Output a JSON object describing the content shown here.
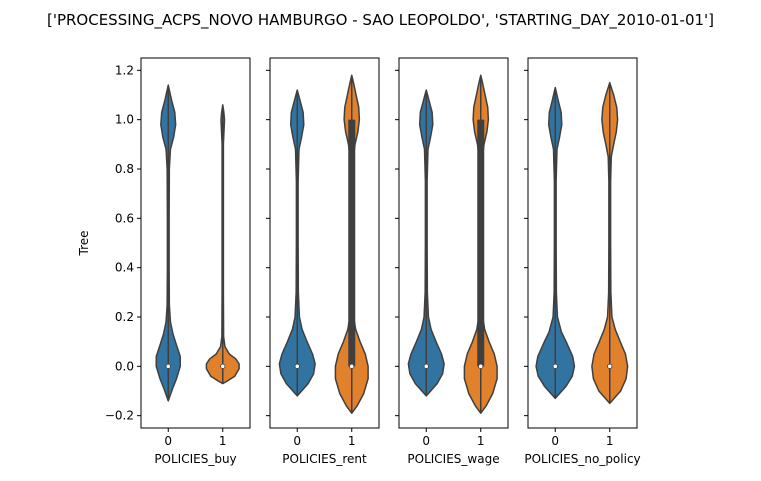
{
  "title": "['PROCESSING_ACPS_NOVO HAMBURGO - SAO LEOPOLDO', 'STARTING_DAY_2010-01-01']",
  "colors": {
    "hue0": "#3274a1",
    "hue1": "#e1812c",
    "edge": "#3f3f3f"
  },
  "chart_data": [
    {
      "type": "violin",
      "xlabel": "POLICIES_buy",
      "ylabel": "Tree",
      "ylim": [
        -0.25,
        1.25
      ],
      "yticks": [
        -0.2,
        0.0,
        0.2,
        0.4,
        0.6,
        0.8,
        1.0,
        1.2
      ],
      "ytick_labels": [
        "−0.2",
        "0.0",
        "0.2",
        "0.4",
        "0.6",
        "0.8",
        "1.0",
        "1.2"
      ],
      "categories": [
        "0",
        "1"
      ],
      "violins": [
        {
          "category": "0",
          "min": -0.14,
          "max": 1.14,
          "median": 0.0,
          "q1": 0.0,
          "q3": 0.0,
          "profile": [
            [
              -0.14,
              0.0
            ],
            [
              -0.12,
              0.08
            ],
            [
              -0.09,
              0.2
            ],
            [
              -0.05,
              0.38
            ],
            [
              0.0,
              0.55
            ],
            [
              0.04,
              0.55
            ],
            [
              0.08,
              0.4
            ],
            [
              0.13,
              0.22
            ],
            [
              0.18,
              0.1
            ],
            [
              0.25,
              0.05
            ],
            [
              0.4,
              0.04
            ],
            [
              0.6,
              0.04
            ],
            [
              0.8,
              0.05
            ],
            [
              0.88,
              0.1
            ],
            [
              0.93,
              0.25
            ],
            [
              0.98,
              0.34
            ],
            [
              1.03,
              0.3
            ],
            [
              1.08,
              0.15
            ],
            [
              1.14,
              0.0
            ]
          ]
        },
        {
          "category": "1",
          "min": -0.07,
          "max": 1.06,
          "median": 0.0,
          "q1": 0.0,
          "q3": 0.0,
          "profile": [
            [
              -0.07,
              0.0
            ],
            [
              -0.06,
              0.2
            ],
            [
              -0.04,
              0.55
            ],
            [
              -0.01,
              0.75
            ],
            [
              0.01,
              0.75
            ],
            [
              0.03,
              0.6
            ],
            [
              0.05,
              0.3
            ],
            [
              0.08,
              0.1
            ],
            [
              0.12,
              0.04
            ],
            [
              0.3,
              0.03
            ],
            [
              0.6,
              0.03
            ],
            [
              0.9,
              0.03
            ],
            [
              0.96,
              0.06
            ],
            [
              1.0,
              0.08
            ],
            [
              1.03,
              0.05
            ],
            [
              1.06,
              0.0
            ]
          ]
        }
      ]
    },
    {
      "type": "violin",
      "xlabel": "POLICIES_rent",
      "ylabel": "",
      "ylim": [
        -0.25,
        1.25
      ],
      "categories": [
        "0",
        "1"
      ],
      "violins": [
        {
          "category": "0",
          "min": -0.12,
          "max": 1.12,
          "median": 0.0,
          "q1": 0.0,
          "q3": 0.0,
          "profile": [
            [
              -0.12,
              0.0
            ],
            [
              -0.1,
              0.2
            ],
            [
              -0.07,
              0.5
            ],
            [
              -0.03,
              0.75
            ],
            [
              0.01,
              0.82
            ],
            [
              0.05,
              0.7
            ],
            [
              0.1,
              0.45
            ],
            [
              0.15,
              0.22
            ],
            [
              0.2,
              0.1
            ],
            [
              0.3,
              0.05
            ],
            [
              0.5,
              0.04
            ],
            [
              0.75,
              0.04
            ],
            [
              0.88,
              0.08
            ],
            [
              0.93,
              0.2
            ],
            [
              0.98,
              0.3
            ],
            [
              1.03,
              0.27
            ],
            [
              1.08,
              0.12
            ],
            [
              1.12,
              0.0
            ]
          ]
        },
        {
          "category": "1",
          "min": -0.19,
          "max": 1.18,
          "median": 0.0,
          "q1": 0.0,
          "q3": 1.0,
          "profile": [
            [
              -0.19,
              0.0
            ],
            [
              -0.16,
              0.25
            ],
            [
              -0.11,
              0.55
            ],
            [
              -0.05,
              0.75
            ],
            [
              0.0,
              0.75
            ],
            [
              0.05,
              0.62
            ],
            [
              0.1,
              0.38
            ],
            [
              0.15,
              0.18
            ],
            [
              0.2,
              0.09
            ],
            [
              0.3,
              0.08
            ],
            [
              0.6,
              0.07
            ],
            [
              0.85,
              0.08
            ],
            [
              0.9,
              0.15
            ],
            [
              0.95,
              0.28
            ],
            [
              1.0,
              0.35
            ],
            [
              1.05,
              0.32
            ],
            [
              1.1,
              0.2
            ],
            [
              1.15,
              0.08
            ],
            [
              1.18,
              0.0
            ]
          ]
        }
      ]
    },
    {
      "type": "violin",
      "xlabel": "POLICIES_wage",
      "ylabel": "",
      "ylim": [
        -0.25,
        1.25
      ],
      "categories": [
        "0",
        "1"
      ],
      "violins": [
        {
          "category": "0",
          "min": -0.12,
          "max": 1.12,
          "median": 0.0,
          "q1": 0.0,
          "q3": 0.0,
          "profile": [
            [
              -0.12,
              0.0
            ],
            [
              -0.1,
              0.2
            ],
            [
              -0.07,
              0.5
            ],
            [
              -0.03,
              0.75
            ],
            [
              0.01,
              0.82
            ],
            [
              0.05,
              0.7
            ],
            [
              0.1,
              0.45
            ],
            [
              0.15,
              0.22
            ],
            [
              0.2,
              0.1
            ],
            [
              0.3,
              0.05
            ],
            [
              0.5,
              0.04
            ],
            [
              0.75,
              0.04
            ],
            [
              0.88,
              0.08
            ],
            [
              0.93,
              0.2
            ],
            [
              0.98,
              0.3
            ],
            [
              1.03,
              0.27
            ],
            [
              1.08,
              0.12
            ],
            [
              1.12,
              0.0
            ]
          ]
        },
        {
          "category": "1",
          "min": -0.19,
          "max": 1.18,
          "median": 0.0,
          "q1": 0.0,
          "q3": 1.0,
          "profile": [
            [
              -0.19,
              0.0
            ],
            [
              -0.16,
              0.25
            ],
            [
              -0.11,
              0.55
            ],
            [
              -0.05,
              0.75
            ],
            [
              0.0,
              0.75
            ],
            [
              0.05,
              0.62
            ],
            [
              0.1,
              0.38
            ],
            [
              0.15,
              0.18
            ],
            [
              0.2,
              0.09
            ],
            [
              0.3,
              0.08
            ],
            [
              0.6,
              0.07
            ],
            [
              0.85,
              0.08
            ],
            [
              0.9,
              0.15
            ],
            [
              0.95,
              0.28
            ],
            [
              1.0,
              0.35
            ],
            [
              1.05,
              0.32
            ],
            [
              1.1,
              0.2
            ],
            [
              1.15,
              0.08
            ],
            [
              1.18,
              0.0
            ]
          ]
        }
      ]
    },
    {
      "type": "violin",
      "xlabel": "POLICIES_no_policy",
      "ylabel": "",
      "ylim": [
        -0.25,
        1.25
      ],
      "categories": [
        "0",
        "1"
      ],
      "violins": [
        {
          "category": "0",
          "min": -0.13,
          "max": 1.13,
          "median": 0.0,
          "q1": 0.0,
          "q3": 0.0,
          "profile": [
            [
              -0.13,
              0.0
            ],
            [
              -0.11,
              0.2
            ],
            [
              -0.08,
              0.5
            ],
            [
              -0.04,
              0.78
            ],
            [
              0.0,
              0.88
            ],
            [
              0.04,
              0.8
            ],
            [
              0.09,
              0.55
            ],
            [
              0.14,
              0.28
            ],
            [
              0.2,
              0.1
            ],
            [
              0.3,
              0.05
            ],
            [
              0.5,
              0.04
            ],
            [
              0.75,
              0.04
            ],
            [
              0.88,
              0.08
            ],
            [
              0.93,
              0.2
            ],
            [
              0.98,
              0.3
            ],
            [
              1.03,
              0.27
            ],
            [
              1.08,
              0.13
            ],
            [
              1.13,
              0.0
            ]
          ]
        },
        {
          "category": "1",
          "min": -0.15,
          "max": 1.15,
          "median": 0.0,
          "q1": 0.0,
          "q3": 0.0,
          "profile": [
            [
              -0.15,
              0.0
            ],
            [
              -0.13,
              0.2
            ],
            [
              -0.1,
              0.5
            ],
            [
              -0.05,
              0.75
            ],
            [
              0.0,
              0.82
            ],
            [
              0.05,
              0.72
            ],
            [
              0.1,
              0.48
            ],
            [
              0.15,
              0.25
            ],
            [
              0.2,
              0.1
            ],
            [
              0.3,
              0.05
            ],
            [
              0.5,
              0.04
            ],
            [
              0.75,
              0.04
            ],
            [
              0.85,
              0.07
            ],
            [
              0.9,
              0.18
            ],
            [
              0.95,
              0.3
            ],
            [
              1.0,
              0.36
            ],
            [
              1.05,
              0.32
            ],
            [
              1.1,
              0.18
            ],
            [
              1.15,
              0.0
            ]
          ]
        }
      ]
    }
  ]
}
